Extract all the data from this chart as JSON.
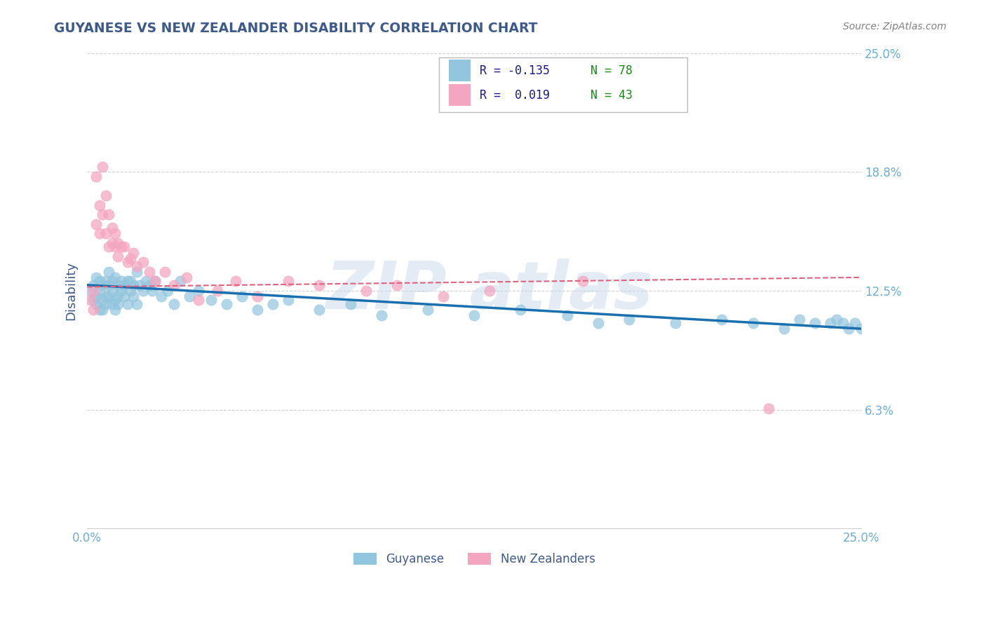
{
  "title": "GUYANESE VS NEW ZEALANDER DISABILITY CORRELATION CHART",
  "source": "Source: ZipAtlas.com",
  "ylabel": "Disability",
  "xlim": [
    0.0,
    0.25
  ],
  "ylim": [
    0.0,
    0.25
  ],
  "yticks": [
    0.0625,
    0.125,
    0.1875,
    0.25
  ],
  "ytick_labels": [
    "6.3%",
    "12.5%",
    "18.8%",
    "25.0%"
  ],
  "xticks": [
    0.0,
    0.25
  ],
  "xtick_labels": [
    "0.0%",
    "25.0%"
  ],
  "color_blue": "#92c5de",
  "color_pink": "#f4a6c0",
  "color_blue_dark": "#1a6faf",
  "color_pink_dark": "#e0607e",
  "background_color": "#ffffff",
  "grid_color": "#cccccc",
  "title_color": "#3d5a8a",
  "axis_label_color": "#3d5a8a",
  "tick_label_color": "#6baed6",
  "guyanese_x": [
    0.001,
    0.002,
    0.002,
    0.003,
    0.003,
    0.003,
    0.004,
    0.004,
    0.004,
    0.005,
    0.005,
    0.005,
    0.006,
    0.006,
    0.006,
    0.007,
    0.007,
    0.007,
    0.008,
    0.008,
    0.008,
    0.009,
    0.009,
    0.009,
    0.01,
    0.01,
    0.01,
    0.011,
    0.011,
    0.012,
    0.012,
    0.013,
    0.013,
    0.014,
    0.014,
    0.015,
    0.015,
    0.016,
    0.016,
    0.017,
    0.018,
    0.019,
    0.02,
    0.021,
    0.022,
    0.024,
    0.026,
    0.028,
    0.03,
    0.033,
    0.036,
    0.04,
    0.045,
    0.05,
    0.055,
    0.06,
    0.065,
    0.075,
    0.085,
    0.095,
    0.11,
    0.125,
    0.14,
    0.155,
    0.165,
    0.175,
    0.19,
    0.205,
    0.215,
    0.225,
    0.23,
    0.235,
    0.24,
    0.242,
    0.244,
    0.246,
    0.248,
    0.25
  ],
  "guyanese_y": [
    0.125,
    0.128,
    0.12,
    0.132,
    0.118,
    0.122,
    0.13,
    0.115,
    0.125,
    0.128,
    0.12,
    0.115,
    0.13,
    0.122,
    0.118,
    0.128,
    0.135,
    0.122,
    0.13,
    0.118,
    0.125,
    0.132,
    0.12,
    0.115,
    0.128,
    0.122,
    0.118,
    0.13,
    0.125,
    0.128,
    0.122,
    0.13,
    0.118,
    0.125,
    0.13,
    0.128,
    0.122,
    0.135,
    0.118,
    0.128,
    0.125,
    0.13,
    0.128,
    0.125,
    0.13,
    0.122,
    0.125,
    0.118,
    0.13,
    0.122,
    0.125,
    0.12,
    0.118,
    0.122,
    0.115,
    0.118,
    0.12,
    0.115,
    0.118,
    0.112,
    0.115,
    0.112,
    0.115,
    0.112,
    0.108,
    0.11,
    0.108,
    0.11,
    0.108,
    0.105,
    0.11,
    0.108,
    0.108,
    0.11,
    0.108,
    0.105,
    0.108,
    0.105
  ],
  "nz_x": [
    0.001,
    0.002,
    0.002,
    0.003,
    0.003,
    0.004,
    0.004,
    0.005,
    0.005,
    0.006,
    0.006,
    0.007,
    0.007,
    0.008,
    0.008,
    0.009,
    0.009,
    0.01,
    0.01,
    0.011,
    0.012,
    0.013,
    0.014,
    0.015,
    0.016,
    0.018,
    0.02,
    0.022,
    0.025,
    0.028,
    0.032,
    0.036,
    0.042,
    0.048,
    0.055,
    0.065,
    0.075,
    0.09,
    0.1,
    0.115,
    0.13,
    0.16,
    0.22
  ],
  "nz_y": [
    0.12,
    0.115,
    0.125,
    0.185,
    0.16,
    0.155,
    0.17,
    0.19,
    0.165,
    0.175,
    0.155,
    0.165,
    0.148,
    0.158,
    0.15,
    0.155,
    0.148,
    0.15,
    0.143,
    0.148,
    0.148,
    0.14,
    0.142,
    0.145,
    0.138,
    0.14,
    0.135,
    0.13,
    0.135,
    0.128,
    0.132,
    0.12,
    0.125,
    0.13,
    0.122,
    0.13,
    0.128,
    0.125,
    0.128,
    0.122,
    0.125,
    0.13,
    0.063
  ],
  "watermark_text": "ZIP atlas",
  "watermark_color": "#c8d8ea",
  "watermark_alpha": 0.5
}
